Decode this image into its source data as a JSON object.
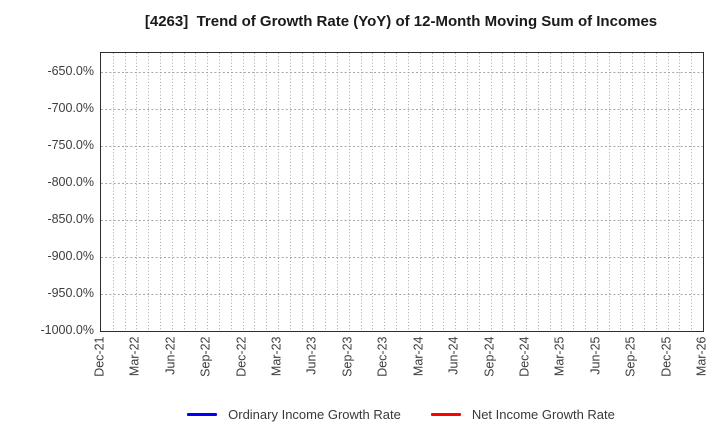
{
  "chart_data": {
    "type": "line",
    "title": "[4263]  Trend of Growth Rate (YoY) of 12-Month Moving Sum of Incomes",
    "x_tick_labels": [
      "Dec-21",
      "Mar-22",
      "Jun-22",
      "Sep-22",
      "Dec-22",
      "Mar-23",
      "Jun-23",
      "Sep-23",
      "Dec-23",
      "Mar-24",
      "Jun-24",
      "Sep-24",
      "Dec-24",
      "Mar-25",
      "Jun-25",
      "Sep-25",
      "Dec-25",
      "Mar-26"
    ],
    "x_months_per_tick": 3,
    "x_total_months": 51,
    "y_tick_labels": [
      "-650.0%",
      "-700.0%",
      "-750.0%",
      "-800.0%",
      "-850.0%",
      "-900.0%",
      "-950.0%",
      "-1000.0%"
    ],
    "y_tick_values": [
      -650,
      -700,
      -750,
      -800,
      -850,
      -900,
      -950,
      -1000
    ],
    "ylim": [
      -1000,
      -625
    ],
    "grid": {
      "show": true,
      "style": "dotted",
      "color": "#a6a6a6",
      "vertical_lines": "every month",
      "horizontal_lines": "every 50%"
    },
    "axis_color": "#2e2e2e",
    "tick_label_color": "#3d3d3d",
    "title_color": "#1a1a1a",
    "series": [
      {
        "name": "Ordinary Income Growth Rate",
        "color": "#0000ff",
        "values": []
      },
      {
        "name": "Net Income Growth Rate",
        "color": "#ff0000",
        "values": []
      }
    ],
    "legend_position": "bottom"
  }
}
